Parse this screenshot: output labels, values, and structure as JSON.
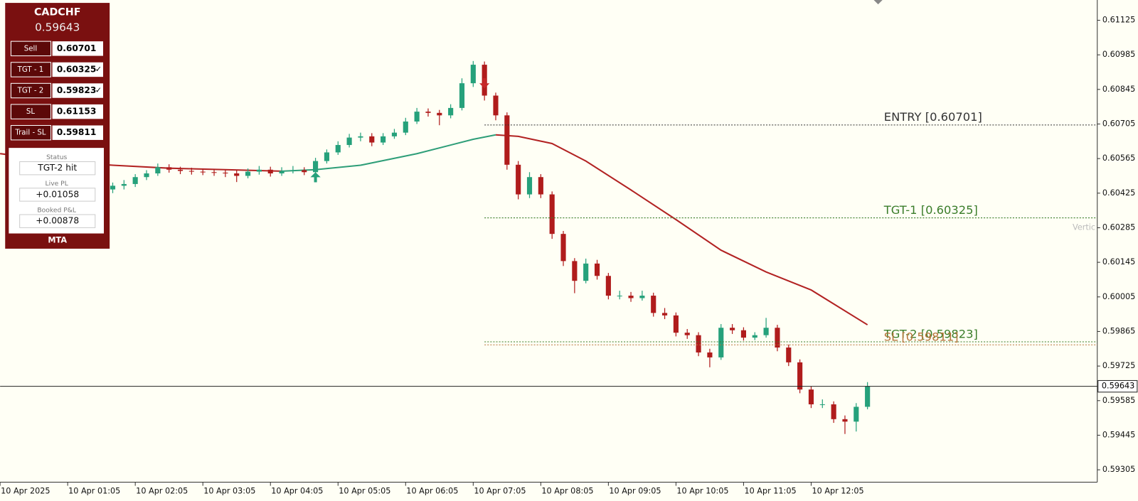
{
  "panel": {
    "symbol": "CADCHF",
    "price": "0.59643",
    "rows": [
      {
        "label": "Sell",
        "value": "0.60701"
      },
      {
        "label": "TGT - 1",
        "value": "0.60325",
        "check": "✓"
      },
      {
        "label": "TGT - 2",
        "value": "0.59823",
        "check": "✓"
      },
      {
        "label": "SL",
        "value": "0.61153"
      },
      {
        "label": "Trail - SL",
        "value": "0.59811"
      }
    ],
    "stats": [
      {
        "label": "Status",
        "value": "TGT-2 hit"
      },
      {
        "label": "Live PL",
        "value": "+0.01058"
      },
      {
        "label": "Booked P&L",
        "value": "+0.00878"
      }
    ],
    "footer": "MTA"
  },
  "chart_data": {
    "type": "candlestick",
    "x": [
      105,
      115,
      125,
      135,
      145,
      155,
      165,
      175,
      185,
      195,
      205,
      215,
      225,
      235,
      245,
      255,
      265,
      275,
      285,
      295,
      305,
      315,
      325,
      335,
      345,
      355,
      365,
      375,
      385,
      395,
      405,
      415,
      425,
      435,
      445,
      455,
      465,
      475,
      485,
      495,
      505,
      515,
      525,
      535,
      545,
      555,
      565,
      575,
      585,
      595,
      605,
      615,
      625,
      635,
      645,
      655,
      665,
      675,
      685,
      695,
      705,
      715,
      725,
      735,
      745,
      755,
      765,
      775
    ],
    "candles": [
      [
        0.6044,
        0.60468,
        0.60425,
        0.60455
      ],
      [
        0.60455,
        0.60478,
        0.6044,
        0.60462
      ],
      [
        0.60462,
        0.60502,
        0.6045,
        0.6049
      ],
      [
        0.6049,
        0.60518,
        0.60478,
        0.60505
      ],
      [
        0.60505,
        0.60545,
        0.60495,
        0.6053
      ],
      [
        0.6053,
        0.60542,
        0.60508,
        0.6052
      ],
      [
        0.6052,
        0.60532,
        0.60502,
        0.60515
      ],
      [
        0.60515,
        0.60528,
        0.605,
        0.60512
      ],
      [
        0.60512,
        0.60525,
        0.60498,
        0.6051
      ],
      [
        0.6051,
        0.60522,
        0.60495,
        0.60508
      ],
      [
        0.60508,
        0.6052,
        0.6049,
        0.60505
      ],
      [
        0.60505,
        0.60518,
        0.6047,
        0.60495
      ],
      [
        0.60495,
        0.60525,
        0.60485,
        0.60512
      ],
      [
        0.60512,
        0.60535,
        0.605,
        0.6052
      ],
      [
        0.6052,
        0.60532,
        0.60492,
        0.60505
      ],
      [
        0.60505,
        0.6053,
        0.60495,
        0.60515
      ],
      [
        0.60515,
        0.60535,
        0.60505,
        0.60518
      ],
      [
        0.60518,
        0.6053,
        0.60498,
        0.6051
      ],
      [
        0.6051,
        0.60568,
        0.605,
        0.60555
      ],
      [
        0.60555,
        0.60602,
        0.60545,
        0.6059
      ],
      [
        0.6059,
        0.60635,
        0.6058,
        0.6062
      ],
      [
        0.6062,
        0.60665,
        0.6061,
        0.6065
      ],
      [
        0.6065,
        0.6067,
        0.60635,
        0.60655
      ],
      [
        0.60655,
        0.60668,
        0.60615,
        0.6063
      ],
      [
        0.6063,
        0.60668,
        0.6062,
        0.60655
      ],
      [
        0.60655,
        0.60685,
        0.60645,
        0.6067
      ],
      [
        0.6067,
        0.6073,
        0.6066,
        0.60715
      ],
      [
        0.60715,
        0.6077,
        0.60705,
        0.60755
      ],
      [
        0.60755,
        0.60768,
        0.60735,
        0.6075
      ],
      [
        0.6075,
        0.60762,
        0.607,
        0.6074
      ],
      [
        0.6074,
        0.60785,
        0.60728,
        0.6077
      ],
      [
        0.6077,
        0.6089,
        0.6076,
        0.6087
      ],
      [
        0.6087,
        0.6096,
        0.60855,
        0.60945
      ],
      [
        0.60945,
        0.60958,
        0.608,
        0.6082
      ],
      [
        0.6082,
        0.60832,
        0.6072,
        0.6074
      ],
      [
        0.6074,
        0.60752,
        0.6052,
        0.6054
      ],
      [
        0.6054,
        0.60555,
        0.604,
        0.6042
      ],
      [
        0.6042,
        0.6051,
        0.60405,
        0.6049
      ],
      [
        0.6049,
        0.60502,
        0.60405,
        0.6042
      ],
      [
        0.6042,
        0.60432,
        0.6024,
        0.6026
      ],
      [
        0.6026,
        0.60272,
        0.6013,
        0.6015
      ],
      [
        0.6015,
        0.60162,
        0.6002,
        0.6007
      ],
      [
        0.6007,
        0.6016,
        0.6006,
        0.6014
      ],
      [
        0.6014,
        0.60155,
        0.60075,
        0.6009
      ],
      [
        0.6009,
        0.60102,
        0.59995,
        0.6001
      ],
      [
        0.6001,
        0.6003,
        0.59995,
        0.6001
      ],
      [
        0.6001,
        0.60025,
        0.59985,
        0.6
      ],
      [
        0.6,
        0.6003,
        0.5999,
        0.6001
      ],
      [
        0.6001,
        0.60022,
        0.59925,
        0.5994
      ],
      [
        0.5994,
        0.5996,
        0.59915,
        0.5993
      ],
      [
        0.5993,
        0.59942,
        0.59845,
        0.5986
      ],
      [
        0.5986,
        0.59875,
        0.59835,
        0.5985
      ],
      [
        0.5985,
        0.59862,
        0.59765,
        0.5978
      ],
      [
        0.5978,
        0.59795,
        0.5972,
        0.5976
      ],
      [
        0.5976,
        0.59895,
        0.5975,
        0.5988
      ],
      [
        0.5988,
        0.59895,
        0.59855,
        0.5987
      ],
      [
        0.5987,
        0.59882,
        0.59828,
        0.5984
      ],
      [
        0.5984,
        0.59862,
        0.5983,
        0.5985
      ],
      [
        0.5985,
        0.5992,
        0.5984,
        0.5988
      ],
      [
        0.5988,
        0.59892,
        0.59785,
        0.598
      ],
      [
        0.598,
        0.59812,
        0.59725,
        0.5974
      ],
      [
        0.5974,
        0.59752,
        0.59615,
        0.5963
      ],
      [
        0.5963,
        0.59642,
        0.59555,
        0.5957
      ],
      [
        0.5957,
        0.5959,
        0.59555,
        0.5957
      ],
      [
        0.5957,
        0.59582,
        0.59495,
        0.5951
      ],
      [
        0.5951,
        0.59525,
        0.5945,
        0.595
      ],
      [
        0.595,
        0.59575,
        0.5946,
        0.5956
      ],
      [
        0.5956,
        0.5966,
        0.5955,
        0.59643
      ]
    ],
    "up_color": "#26a17b",
    "down_color": "#b01c1c",
    "ma": {
      "x": [
        5,
        55,
        105,
        155,
        205,
        255,
        285,
        325,
        375,
        425,
        445,
        465,
        495,
        525,
        565,
        605,
        645,
        685,
        725,
        775
      ],
      "values": [
        0.60585,
        0.60555,
        0.60538,
        0.60526,
        0.6052,
        0.60514,
        0.6052,
        0.60538,
        0.60585,
        0.60643,
        0.60661,
        0.60655,
        0.60626,
        0.60555,
        0.60438,
        0.60318,
        0.60194,
        0.60106,
        0.60033,
        0.59892
      ],
      "up_color": "#2e9e78",
      "down_color": "#b22222"
    },
    "signals": [
      {
        "x": 285,
        "price": 0.6051,
        "direction": "up",
        "color": "#26a17b"
      },
      {
        "x": 435,
        "price": 0.60849,
        "direction": "down",
        "color": "#c62828"
      }
    ],
    "levels": [
      {
        "label": "ENTRY [0.60701]",
        "value": 0.60701,
        "color": "#333333"
      },
      {
        "label": "TGT-1 [0.60325]",
        "value": 0.60325,
        "color": "#3a7d2a"
      },
      {
        "label": "TGT-2 [0.59823]",
        "value": 0.59823,
        "color": "#3a7d2a"
      },
      {
        "label": "SL [0.59811]",
        "value": 0.59811,
        "color": "#b7743a"
      }
    ],
    "current_price": 0.59643,
    "annotation": "Vertic",
    "xlim": [
      5,
      979
    ],
    "xticks": [
      {
        "value": 5,
        "label": "10 Apr 2025"
      },
      {
        "value": 65,
        "label": "10 Apr 01:05"
      },
      {
        "value": 125,
        "label": "10 Apr 02:05"
      },
      {
        "value": 185,
        "label": "10 Apr 03:05"
      },
      {
        "value": 245,
        "label": "10 Apr 04:05"
      },
      {
        "value": 305,
        "label": "10 Apr 05:05"
      },
      {
        "value": 365,
        "label": "10 Apr 06:05"
      },
      {
        "value": 425,
        "label": "10 Apr 07:05"
      },
      {
        "value": 485,
        "label": "10 Apr 08:05"
      },
      {
        "value": 545,
        "label": "10 Apr 09:05"
      },
      {
        "value": 605,
        "label": "10 Apr 10:05"
      },
      {
        "value": 665,
        "label": "10 Apr 11:05"
      },
      {
        "value": 725,
        "label": "10 Apr 12:05"
      }
    ],
    "ylim": [
      0.59255,
      0.61207
    ],
    "yticks": [
      0.61125,
      0.60985,
      0.60845,
      0.60705,
      0.60565,
      0.60425,
      0.60285,
      0.60145,
      0.60005,
      0.59865,
      0.59725,
      0.59585,
      0.59445,
      0.59305
    ]
  }
}
